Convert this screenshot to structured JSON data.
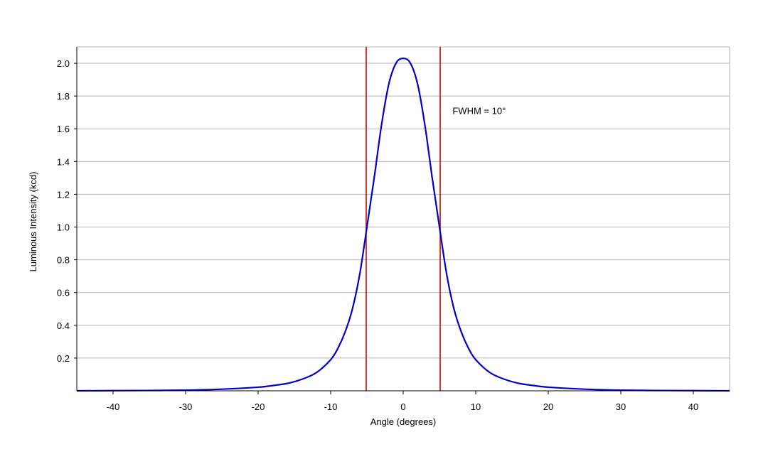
{
  "chart_data": {
    "type": "line",
    "title": "",
    "xlabel": "Angle (degrees)",
    "ylabel": "Luminous Intensity (kcd)",
    "xlim": [
      -45,
      45
    ],
    "ylim": [
      0,
      2.1
    ],
    "x_ticks": [
      -40,
      -30,
      -20,
      -10,
      0,
      10,
      20,
      30,
      40
    ],
    "x_tick_labels": [
      "-40",
      "-30",
      "-20",
      "-10",
      "0",
      "10",
      "20",
      "30",
      "40"
    ],
    "y_ticks": [
      0.2,
      0.4,
      0.6,
      0.8,
      1.0,
      1.2,
      1.4,
      1.6,
      1.8,
      2.0
    ],
    "y_tick_labels": [
      "0.2",
      "0.4",
      "0.6",
      "0.8",
      "1.0",
      "1.2",
      "1.4",
      "1.6",
      "1.8",
      "2.0"
    ],
    "grid": "horizontal",
    "series": [
      {
        "color": "#0000cc",
        "x": [
          -45,
          -40,
          -35,
          -30,
          -25,
          -20,
          -18,
          -16,
          -14,
          -12,
          -10,
          -9,
          -8,
          -7,
          -6,
          -5,
          -4,
          -3,
          -2,
          -1,
          0,
          1,
          2,
          3,
          4,
          5,
          6,
          7,
          8,
          9,
          10,
          12,
          14,
          16,
          18,
          20,
          25,
          30,
          35,
          40,
          45
        ],
        "y": [
          0.0,
          0.001,
          0.002,
          0.004,
          0.01,
          0.022,
          0.032,
          0.045,
          0.07,
          0.11,
          0.19,
          0.26,
          0.36,
          0.5,
          0.71,
          1.0,
          1.3,
          1.62,
          1.87,
          2.0,
          2.03,
          2.0,
          1.87,
          1.62,
          1.3,
          1.0,
          0.71,
          0.5,
          0.36,
          0.26,
          0.19,
          0.11,
          0.07,
          0.045,
          0.032,
          0.022,
          0.01,
          0.004,
          0.002,
          0.001,
          0.0
        ]
      }
    ],
    "vertical_lines": [
      {
        "x": -5.1,
        "color": "#cc0000"
      },
      {
        "x": 5.1,
        "color": "#cc0000"
      }
    ],
    "annotations": [
      {
        "text": "FWHM = 10°",
        "x": 6.8,
        "y": 1.69
      }
    ],
    "colors": {
      "grid": "#b3b3b3",
      "frame": "#b3b3b3",
      "axis": "#000000"
    }
  }
}
